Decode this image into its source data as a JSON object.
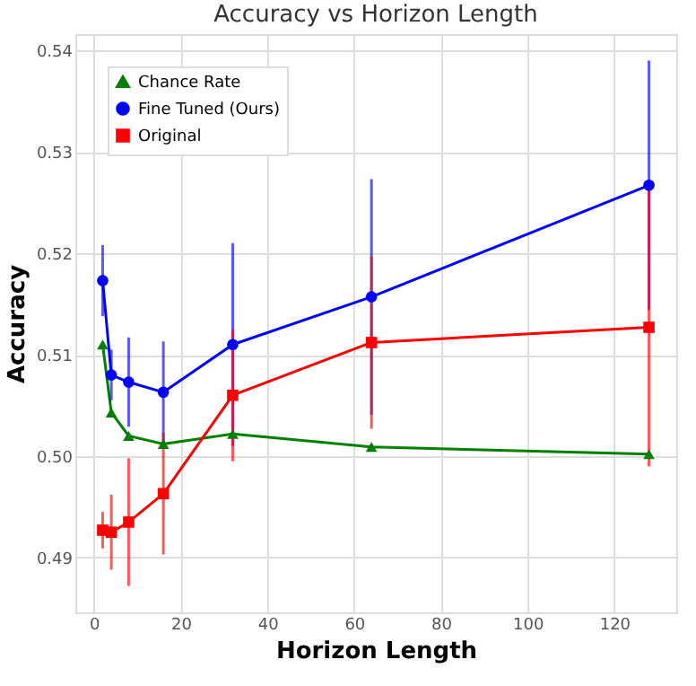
{
  "chart_data": {
    "type": "line",
    "title": "Accuracy vs Horizon Length",
    "xlabel": "Horizon Length",
    "ylabel": "Accuracy",
    "x": [
      2,
      4,
      8,
      16,
      32,
      64,
      128
    ],
    "xlim": [
      -4.3,
      134.3
    ],
    "xticks": [
      0,
      20,
      40,
      60,
      80,
      100,
      120
    ],
    "ylim": [
      0.4846,
      0.5416
    ],
    "yticks": [
      {
        "value": 0.49,
        "label": "0.49"
      },
      {
        "value": 0.5,
        "label": "0.50"
      },
      {
        "value": 0.51,
        "label": "0.51"
      },
      {
        "value": 0.52,
        "label": "0.52"
      },
      {
        "value": 0.53,
        "label": "0.53"
      },
      {
        "value": 0.54,
        "label": "0.54"
      }
    ],
    "grid": true,
    "legend": "top left",
    "line_style": "solid",
    "series": [
      {
        "name": "Chance Rate",
        "color": "#008000",
        "marker": "triangle",
        "values": [
          0.511,
          0.5043,
          0.502,
          0.5012,
          0.5022,
          0.5009,
          0.5002
        ]
      },
      {
        "name": "Fine Tuned (Ours)",
        "color": "#0000ff",
        "marker": "circle",
        "values": [
          0.5173,
          0.508,
          0.5073,
          0.5063,
          0.511,
          0.5157,
          0.5267
        ],
        "errors": [
          0.0035,
          0.0025,
          0.0044,
          0.005,
          0.01,
          0.0116,
          0.0123
        ]
      },
      {
        "name": "Original",
        "color": "#ff0000",
        "marker": "square",
        "values": [
          0.4927,
          0.4925,
          0.4935,
          0.4963,
          0.506,
          0.5112,
          0.5127
        ],
        "errors": [
          0.0018,
          0.0037,
          0.0063,
          0.006,
          0.0065,
          0.0085,
          0.0137
        ]
      }
    ]
  }
}
